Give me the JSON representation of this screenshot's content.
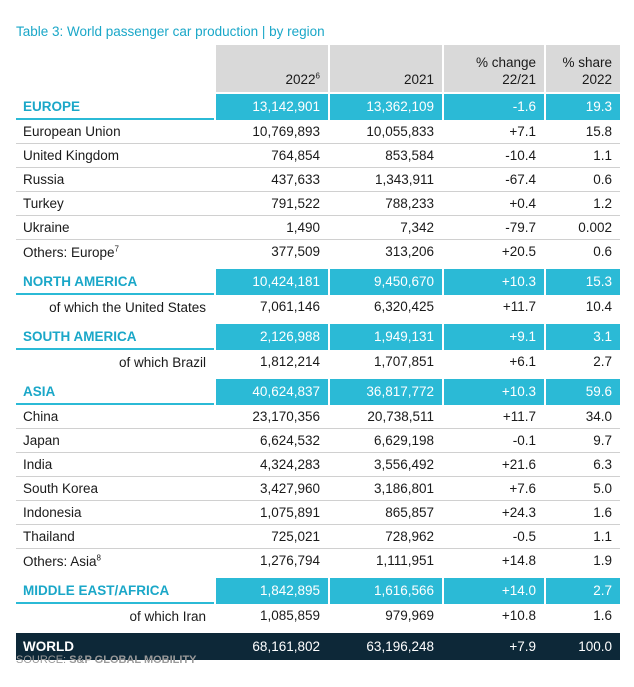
{
  "title": "Table 3: World passenger car production | by region",
  "header": {
    "col1": "2022",
    "col1_sup": "6",
    "col2": "2021",
    "col3_line1": "% change",
    "col3_line2": "22/21",
    "col4_line1": "% share",
    "col4_line2": "2022"
  },
  "europe": {
    "region": [
      "EUROPE",
      "13,142,901",
      "13,362,109",
      "-1.6",
      "19.3"
    ],
    "rows": [
      [
        "European Union",
        "10,769,893",
        "10,055,833",
        "+7.1",
        "15.8"
      ],
      [
        "United Kingdom",
        "764,854",
        "853,584",
        "-10.4",
        "1.1"
      ],
      [
        "Russia",
        "437,633",
        "1,343,911",
        "-67.4",
        "0.6"
      ],
      [
        "Turkey",
        "791,522",
        "788,233",
        "+0.4",
        "1.2"
      ],
      [
        "Ukraine",
        "1,490",
        "7,342",
        "-79.7",
        "0.002"
      ],
      [
        "Others: Europe",
        "377,509",
        "313,206",
        "+20.5",
        "0.6"
      ]
    ],
    "others_sup": "7"
  },
  "north_america": {
    "region": [
      "NORTH AMERICA",
      "10,424,181",
      "9,450,670",
      "+10.3",
      "15.3"
    ],
    "rows": [
      [
        "of which the United States",
        "7,061,146",
        "6,320,425",
        "+11.7",
        "10.4"
      ]
    ]
  },
  "south_america": {
    "region": [
      "SOUTH AMERICA",
      "2,126,988",
      "1,949,131",
      "+9.1",
      "3.1"
    ],
    "rows": [
      [
        "of which Brazil",
        "1,812,214",
        "1,707,851",
        "+6.1",
        "2.7"
      ]
    ]
  },
  "asia": {
    "region": [
      "ASIA",
      "40,624,837",
      "36,817,772",
      "+10.3",
      "59.6"
    ],
    "rows": [
      [
        "China",
        "23,170,356",
        "20,738,511",
        "+11.7",
        "34.0"
      ],
      [
        "Japan",
        "6,624,532",
        "6,629,198",
        "-0.1",
        "9.7"
      ],
      [
        "India",
        "4,324,283",
        "3,556,492",
        "+21.6",
        "6.3"
      ],
      [
        "South Korea",
        "3,427,960",
        "3,186,801",
        "+7.6",
        "5.0"
      ],
      [
        "Indonesia",
        "1,075,891",
        "865,857",
        "+24.3",
        "1.6"
      ],
      [
        "Thailand",
        "725,021",
        "728,962",
        "-0.5",
        "1.1"
      ],
      [
        "Others: Asia",
        "1,276,794",
        "1,111,951",
        "+14.8",
        "1.9"
      ]
    ],
    "others_sup": "8"
  },
  "middle_east_africa": {
    "region": [
      "MIDDLE EAST/AFRICA",
      "1,842,895",
      "1,616,566",
      "+14.0",
      "2.7"
    ],
    "rows": [
      [
        "of which Iran",
        "1,085,859",
        "979,969",
        "+10.8",
        "1.6"
      ]
    ]
  },
  "world": [
    "WORLD",
    "68,161,802",
    "63,196,248",
    "+7.9",
    "100.0"
  ],
  "source_label": "SOURCE: ",
  "source_name": "S&P GLOBAL MOBILITY",
  "colors": {
    "accent": "#2bbad6",
    "title": "#1aa7c8",
    "header_bg": "#d9d9d9",
    "world_bg": "#0d2838"
  }
}
